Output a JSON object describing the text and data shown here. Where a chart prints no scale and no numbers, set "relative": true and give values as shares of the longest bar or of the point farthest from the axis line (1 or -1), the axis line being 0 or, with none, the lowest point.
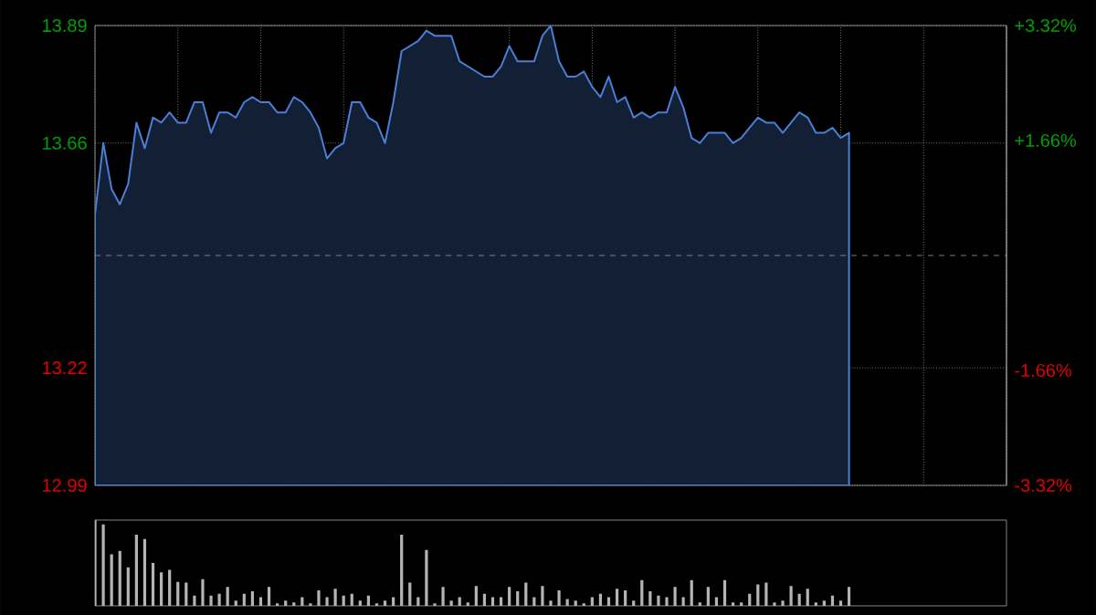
{
  "chart_data": [
    {
      "type": "area",
      "categories": [
        null,
        null,
        null,
        null,
        null,
        null,
        null,
        null,
        null,
        null,
        null,
        null,
        null,
        null,
        null,
        null,
        null,
        null,
        null,
        null,
        null,
        null,
        null,
        null,
        null,
        null,
        null,
        null,
        null,
        null,
        null,
        null,
        null,
        null,
        null,
        null,
        null,
        null,
        null,
        null,
        null,
        null,
        null,
        null,
        null,
        null,
        null,
        null,
        null,
        null,
        null,
        null,
        null,
        null,
        null,
        null,
        null,
        null,
        null,
        null,
        null,
        null,
        null,
        null,
        null,
        null,
        null,
        null,
        null,
        null,
        null,
        null,
        null,
        null,
        null,
        null,
        null,
        null,
        null,
        null,
        null,
        null,
        null,
        null,
        null,
        null,
        null,
        null,
        null,
        null,
        null,
        null,
        null,
        null,
        null,
        null,
        null,
        null,
        null,
        null,
        null,
        null,
        null,
        null,
        null,
        null,
        null,
        null,
        null,
        null,
        null
      ],
      "series": [
        {
          "color": "#4a7fd6",
          "values": [
            13.52,
            13.66,
            13.57,
            13.54,
            13.58,
            13.7,
            13.65,
            13.71,
            13.7,
            13.72,
            13.7,
            13.7,
            13.74,
            13.74,
            13.68,
            13.72,
            13.72,
            13.71,
            13.74,
            13.75,
            13.74,
            13.74,
            13.72,
            13.72,
            13.75,
            13.74,
            13.72,
            13.69,
            13.63,
            13.65,
            13.66,
            13.74,
            13.74,
            13.71,
            13.7,
            13.66,
            13.74,
            13.84,
            13.85,
            13.86,
            13.88,
            13.87,
            13.87,
            13.87,
            13.82,
            13.81,
            13.8,
            13.79,
            13.79,
            13.81,
            13.85,
            13.82,
            13.82,
            13.82,
            13.87,
            13.89,
            13.82,
            13.79,
            13.79,
            13.8,
            13.77,
            13.75,
            13.79,
            13.74,
            13.75,
            13.71,
            13.72,
            13.71,
            13.72,
            13.72,
            13.77,
            13.73,
            13.67,
            13.66,
            13.68,
            13.68,
            13.68,
            13.66,
            13.67,
            13.69,
            13.71,
            13.7,
            13.7,
            13.68,
            13.7,
            13.72,
            13.71,
            13.68,
            13.68,
            13.69,
            13.67,
            13.68,
            null,
            null,
            null,
            null,
            null,
            null,
            null,
            null,
            null,
            null,
            null,
            null,
            null,
            null,
            null,
            null,
            null,
            null,
            null
          ]
        }
      ],
      "ylim": [
        12.99,
        13.89
      ],
      "yticks": [
        12.99,
        13.22,
        13.66,
        13.89
      ],
      "y2lim": [
        -3.32,
        3.32
      ],
      "y2ticks": [
        {
          "value": -3.32,
          "label": "-3.32%"
        },
        {
          "value": -1.66,
          "label": "-1.66%"
        },
        {
          "value": 1.66,
          "label": "+1.66%"
        },
        {
          "value": 3.32,
          "label": "+3.32%"
        }
      ],
      "ref_lines": [
        {
          "axis": "y",
          "value": 13.44,
          "line_style": "dashed"
        }
      ],
      "grid": true,
      "tick_labels": "y"
    },
    {
      "type": "bar",
      "relative": true,
      "tick_labels": false,
      "categories": [
        null,
        null,
        null,
        null,
        null,
        null,
        null,
        null,
        null,
        null,
        null,
        null,
        null,
        null,
        null,
        null,
        null,
        null,
        null,
        null,
        null,
        null,
        null,
        null,
        null,
        null,
        null,
        null,
        null,
        null,
        null,
        null,
        null,
        null,
        null,
        null,
        null,
        null,
        null,
        null,
        null,
        null,
        null,
        null,
        null,
        null,
        null,
        null,
        null,
        null,
        null,
        null,
        null,
        null,
        null,
        null,
        null,
        null,
        null,
        null,
        null,
        null,
        null,
        null,
        null,
        null,
        null,
        null,
        null,
        null,
        null,
        null,
        null,
        null,
        null,
        null,
        null,
        null,
        null,
        null,
        null,
        null,
        null,
        null,
        null,
        null,
        null,
        null,
        null,
        null,
        null,
        null,
        null,
        null,
        null,
        null,
        null,
        null,
        null,
        null,
        null,
        null,
        null,
        null,
        null,
        null,
        null,
        null,
        null,
        null,
        null
      ],
      "series": [
        {
          "color": "#b4b4b4",
          "values": [
            1.0,
            0.95,
            0.6,
            0.64,
            0.45,
            0.83,
            0.78,
            0.5,
            0.39,
            0.42,
            0.28,
            0.27,
            0.12,
            0.31,
            0.12,
            0.14,
            0.22,
            0.06,
            0.14,
            0.17,
            0.1,
            0.22,
            0.03,
            0.06,
            0.04,
            0.1,
            0.03,
            0.18,
            0.1,
            0.2,
            0.12,
            0.14,
            0.06,
            0.12,
            0.03,
            0.06,
            0.1,
            0.83,
            0.27,
            0.1,
            0.65,
            0.03,
            0.22,
            0.06,
            0.1,
            0.04,
            0.23,
            0.14,
            0.1,
            0.1,
            0.22,
            0.17,
            0.27,
            0.1,
            0.23,
            0.06,
            0.18,
            0.08,
            0.06,
            0.03,
            0.1,
            0.14,
            0.1,
            0.2,
            0.18,
            0.06,
            0.3,
            0.17,
            0.12,
            0.1,
            0.22,
            0.1,
            0.3,
            0.04,
            0.22,
            0.1,
            0.3,
            0.04,
            0.04,
            0.14,
            0.25,
            0.27,
            0.04,
            0.06,
            0.23,
            0.14,
            0.2,
            0.04,
            0.06,
            0.12,
            0.06,
            0.22,
            null,
            null,
            null,
            null,
            null,
            null,
            null,
            null,
            null,
            null,
            null,
            null,
            null,
            null,
            null,
            null,
            null,
            null,
            null
          ]
        }
      ]
    }
  ]
}
